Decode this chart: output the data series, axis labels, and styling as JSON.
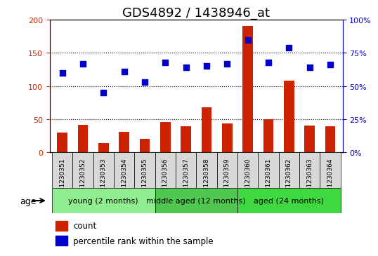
{
  "title": "GDS4892 / 1438946_at",
  "samples": [
    "GSM1230351",
    "GSM1230352",
    "GSM1230353",
    "GSM1230354",
    "GSM1230355",
    "GSM1230356",
    "GSM1230357",
    "GSM1230358",
    "GSM1230359",
    "GSM1230360",
    "GSM1230361",
    "GSM1230362",
    "GSM1230363",
    "GSM1230364"
  ],
  "counts": [
    30,
    41,
    14,
    31,
    20,
    46,
    39,
    68,
    44,
    191,
    50,
    108,
    40,
    39
  ],
  "percentiles": [
    60,
    67,
    45,
    61,
    53,
    68,
    64,
    65,
    67,
    85,
    68,
    79,
    64,
    66
  ],
  "bar_color": "#cc2200",
  "dot_color": "#0000cc",
  "ylim_left": [
    0,
    200
  ],
  "ylim_right": [
    0,
    100
  ],
  "yticks_left": [
    0,
    50,
    100,
    150,
    200
  ],
  "ytick_labels_left": [
    "0",
    "50",
    "100",
    "150",
    "200"
  ],
  "yticks_right": [
    0,
    25,
    50,
    75,
    100
  ],
  "ytick_labels_right": [
    "0%",
    "25%",
    "50%",
    "75%",
    "100%"
  ],
  "groups": [
    {
      "label": "young (2 months)",
      "start": 0,
      "end": 5,
      "color": "#90ee90"
    },
    {
      "label": "middle aged (12 months)",
      "start": 5,
      "end": 9,
      "color": "#50c850"
    },
    {
      "label": "aged (24 months)",
      "start": 9,
      "end": 14,
      "color": "#40d840"
    }
  ],
  "age_label": "age",
  "legend_count_label": "count",
  "legend_pct_label": "percentile rank within the sample",
  "title_fontsize": 13,
  "axis_label_fontsize": 9,
  "tick_fontsize": 8,
  "group_label_fontsize": 8
}
